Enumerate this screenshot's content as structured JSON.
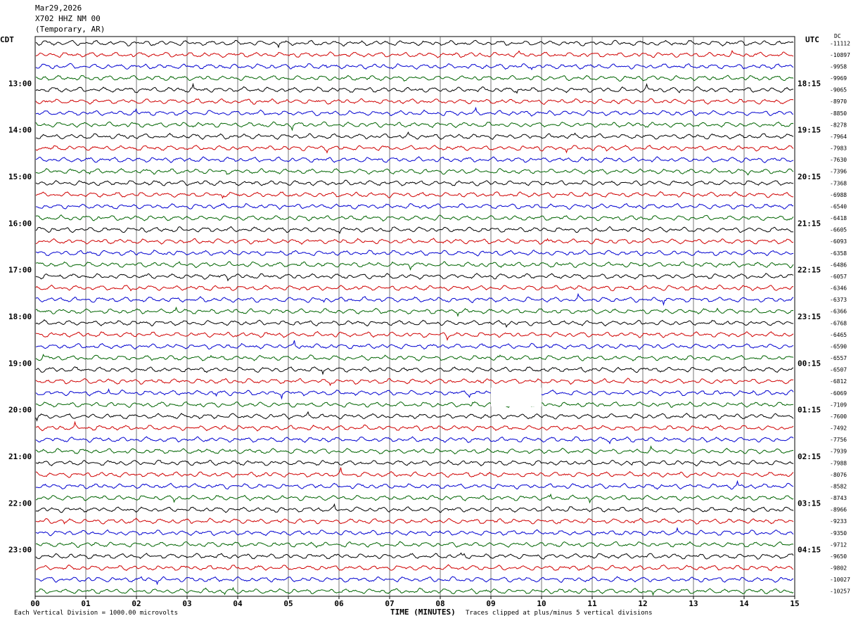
{
  "header": {
    "date": "Mar29,2026",
    "station": "X702 HHZ NM 00",
    "location": "(Temporary, AR)"
  },
  "left_axis_label": "CDT",
  "right_axis_label": "UTC",
  "right_top_label": "DC",
  "footer": {
    "scale": "Each Vertical Division = 1000.00 microvolts",
    "clip": "Traces clipped at plus/minus 5 vertical divisions"
  },
  "colors": {
    "trace": [
      "#000000",
      "#d00000",
      "#0000d0",
      "#006400"
    ],
    "grid": "#000000"
  },
  "chart_data": {
    "type": "line",
    "title": "",
    "xlabel": "TIME (MINUTES)",
    "xlim": [
      0,
      15
    ],
    "x_ticks": [
      "00",
      "01",
      "02",
      "03",
      "04",
      "05",
      "06",
      "07",
      "08",
      "09",
      "10",
      "11",
      "12",
      "13",
      "14",
      "15"
    ],
    "left_hour_labels": [
      "13:00",
      "14:00",
      "15:00",
      "16:00",
      "17:00",
      "18:00",
      "19:00",
      "20:00",
      "21:00",
      "22:00",
      "23:00"
    ],
    "right_hour_labels": [
      "18:15",
      "19:15",
      "20:15",
      "21:15",
      "22:15",
      "23:15",
      "00:15",
      "01:15",
      "02:15",
      "03:15",
      "04:15"
    ],
    "trace_count": 48,
    "traces_per_hour": 4,
    "dc_offsets": [
      "-11112",
      "-10897",
      "-9958",
      "-9969",
      "-9065",
      "-8970",
      "-8850",
      "-8278",
      "-7964",
      "-7983",
      "-7630",
      "-7396",
      "-7368",
      "-6988",
      "-6540",
      "-6418",
      "-6605",
      "-6093",
      "-6358",
      "-6486",
      "-6057",
      "-6346",
      "-6373",
      "-6366",
      "-6768",
      "-6465",
      "-6590",
      "-6557",
      "-6507",
      "-6812",
      "-6069",
      "-7109",
      "-7600",
      "-7492",
      "-7756",
      "-7939",
      "-7988",
      "-8076",
      "-8582",
      "-8743",
      "-8966",
      "-9233",
      "-9350",
      "-9712",
      "-9650",
      "-9802",
      "-10027",
      "-10257"
    ]
  }
}
